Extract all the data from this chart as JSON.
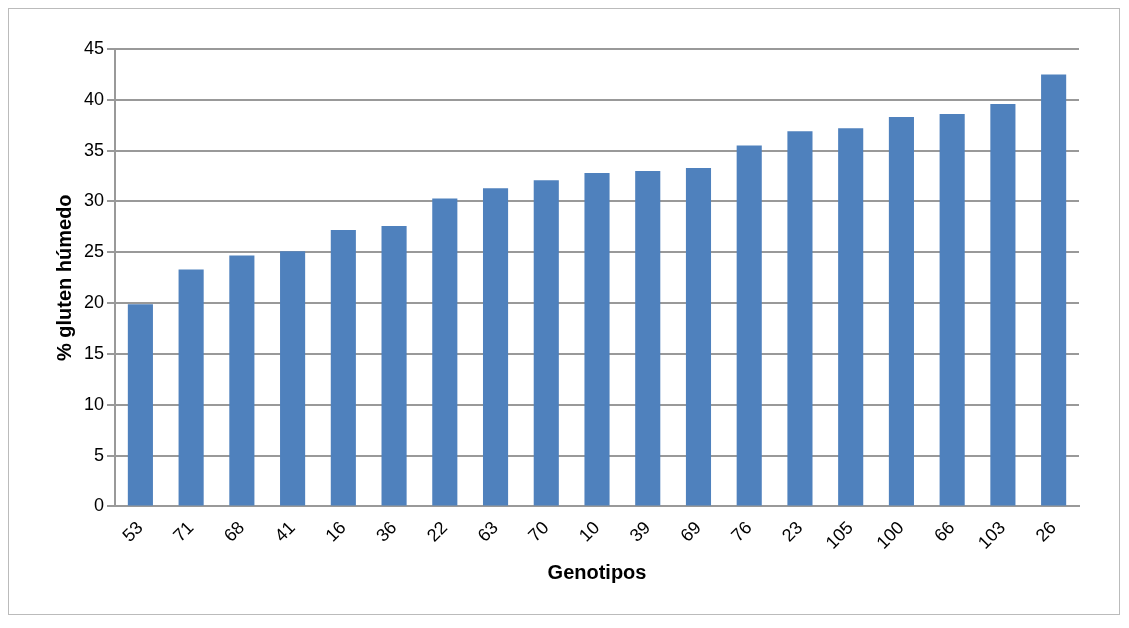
{
  "chart_data": {
    "type": "bar",
    "xlabel": "Genotipos",
    "ylabel": "% gluten húmedo",
    "categories": [
      "53",
      "71",
      "68",
      "41",
      "16",
      "36",
      "22",
      "63",
      "70",
      "10",
      "39",
      "69",
      "76",
      "23",
      "105",
      "100",
      "66",
      "103",
      "26"
    ],
    "values": [
      19.9,
      23.3,
      24.7,
      25.1,
      27.2,
      27.6,
      30.3,
      31.3,
      32.1,
      32.8,
      33.0,
      33.3,
      35.5,
      36.9,
      37.2,
      38.3,
      38.6,
      39.6,
      42.5
    ],
    "color": "#4f81bd",
    "ylim": [
      0,
      45
    ],
    "yticks": [
      0,
      5,
      10,
      15,
      20,
      25,
      30,
      35,
      40,
      45
    ],
    "grid": "y"
  }
}
